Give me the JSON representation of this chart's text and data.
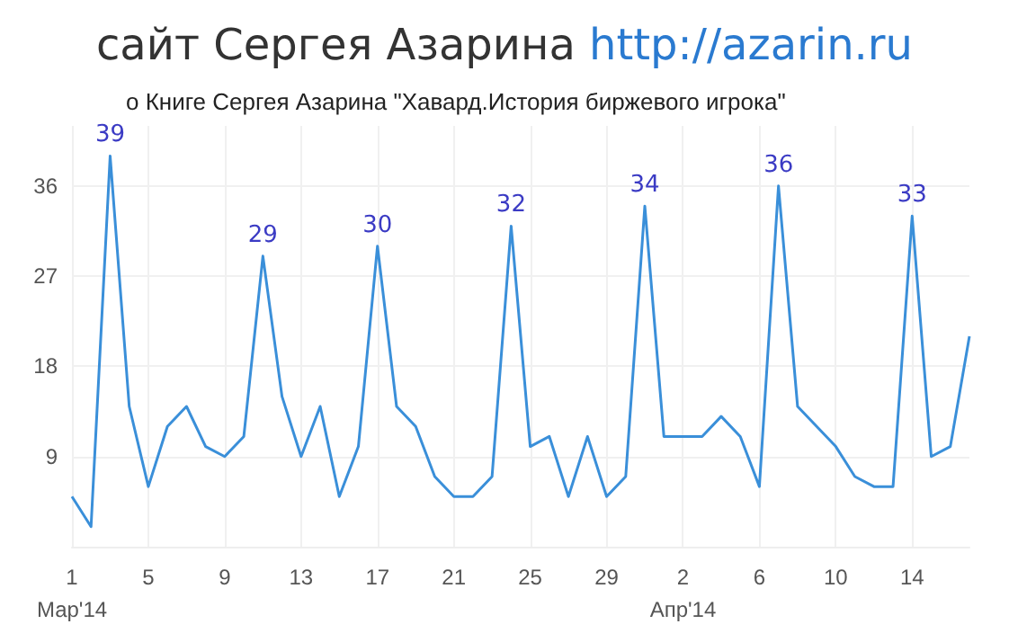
{
  "chart_data": {
    "type": "line",
    "title": "сайт Сергея Азарина http://azarin.ru",
    "subtitle": "о Книге Сергея Азарина \"Хавард.История биржевого игрока\"",
    "x": [
      "2014-03-01",
      "2014-03-02",
      "2014-03-03",
      "2014-03-04",
      "2014-03-05",
      "2014-03-06",
      "2014-03-07",
      "2014-03-08",
      "2014-03-09",
      "2014-03-10",
      "2014-03-11",
      "2014-03-12",
      "2014-03-13",
      "2014-03-14",
      "2014-03-15",
      "2014-03-16",
      "2014-03-17",
      "2014-03-18",
      "2014-03-19",
      "2014-03-20",
      "2014-03-21",
      "2014-03-22",
      "2014-03-23",
      "2014-03-24",
      "2014-03-25",
      "2014-03-26",
      "2014-03-27",
      "2014-03-28",
      "2014-03-29",
      "2014-03-30",
      "2014-03-31",
      "2014-04-01",
      "2014-04-02",
      "2014-04-03",
      "2014-04-04",
      "2014-04-05",
      "2014-04-06",
      "2014-04-07",
      "2014-04-08",
      "2014-04-09",
      "2014-04-10",
      "2014-04-11",
      "2014-04-12",
      "2014-04-13",
      "2014-04-14",
      "2014-04-15",
      "2014-04-16",
      "2014-04-17"
    ],
    "series": [
      {
        "color": "#3a8fd9",
        "values": [
          5,
          2,
          39,
          14,
          6,
          12,
          14,
          10,
          9,
          11,
          29,
          15,
          9,
          14,
          5,
          10,
          30,
          14,
          12,
          7,
          5,
          5,
          7,
          32,
          10,
          11,
          5,
          11,
          5,
          7,
          34,
          11,
          11,
          11,
          13,
          11,
          6,
          36,
          14,
          12,
          10,
          7,
          6,
          6,
          33,
          9,
          10,
          21
        ],
        "value_labels": [
          null,
          null,
          "39",
          null,
          null,
          null,
          null,
          null,
          null,
          null,
          "29",
          null,
          null,
          null,
          null,
          null,
          "30",
          null,
          null,
          null,
          null,
          null,
          null,
          "32",
          null,
          null,
          null,
          null,
          null,
          null,
          "34",
          null,
          null,
          null,
          null,
          null,
          null,
          "36",
          null,
          null,
          null,
          null,
          null,
          null,
          "33",
          null,
          null,
          null
        ]
      }
    ],
    "xlim": [
      "2014-03-01",
      "2014-04-17"
    ],
    "xticks": [
      {
        "value": "2014-03-01",
        "label": "1\nМар'14"
      },
      {
        "value": "2014-03-05",
        "label": "5"
      },
      {
        "value": "2014-03-09",
        "label": "9"
      },
      {
        "value": "2014-03-13",
        "label": "13"
      },
      {
        "value": "2014-03-17",
        "label": "17"
      },
      {
        "value": "2014-03-21",
        "label": "21"
      },
      {
        "value": "2014-03-25",
        "label": "25"
      },
      {
        "value": "2014-03-29",
        "label": "29"
      },
      {
        "value": "2014-04-02",
        "label": "2\nАпр'14"
      },
      {
        "value": "2014-04-06",
        "label": "6"
      },
      {
        "value": "2014-04-10",
        "label": "10"
      },
      {
        "value": "2014-04-14",
        "label": "14"
      }
    ],
    "ylim": [
      0,
      42
    ],
    "yticks": [
      9,
      18,
      27,
      36
    ],
    "grid": true,
    "marker": "none",
    "line_style": "solid"
  }
}
